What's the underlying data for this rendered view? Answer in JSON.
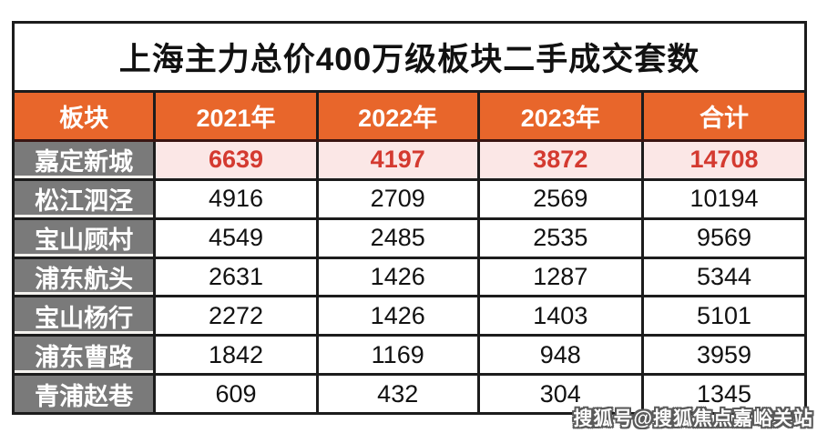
{
  "chart_data": {
    "type": "table",
    "title": "上海主力总价400万级板块二手成交套数",
    "columns": [
      "板块",
      "2021年",
      "2022年",
      "2023年",
      "合计"
    ],
    "rows": [
      {
        "label": "嘉定新城",
        "values": [
          6639,
          4197,
          3872,
          14708
        ],
        "highlighted": true
      },
      {
        "label": "松江泗泾",
        "values": [
          4916,
          2709,
          2569,
          10194
        ],
        "highlighted": false
      },
      {
        "label": "宝山顾村",
        "values": [
          4549,
          2485,
          2535,
          9569
        ],
        "highlighted": false
      },
      {
        "label": "浦东航头",
        "values": [
          2631,
          1426,
          1287,
          5344
        ],
        "highlighted": false
      },
      {
        "label": "宝山杨行",
        "values": [
          2272,
          1426,
          1403,
          5101
        ],
        "highlighted": false
      },
      {
        "label": "浦东曹路",
        "values": [
          1842,
          1169,
          948,
          3959
        ],
        "highlighted": false
      },
      {
        "label": "青浦赵巷",
        "values": [
          609,
          432,
          304,
          1345
        ],
        "highlighted": false
      }
    ],
    "highlight_row_index": 0,
    "legend": "none",
    "grid": "on"
  },
  "watermark": {
    "text": "搜狐号@搜狐焦点嘉峪关站"
  },
  "colors": {
    "header_orange": "#E8662B",
    "row_label_gray": "#7A7A7A",
    "highlight_pink": "#FBE7E6",
    "highlight_red": "#D43A30",
    "border_black": "#1C1C1C",
    "text_black": "#111111",
    "text_white": "#FFFFFF"
  }
}
